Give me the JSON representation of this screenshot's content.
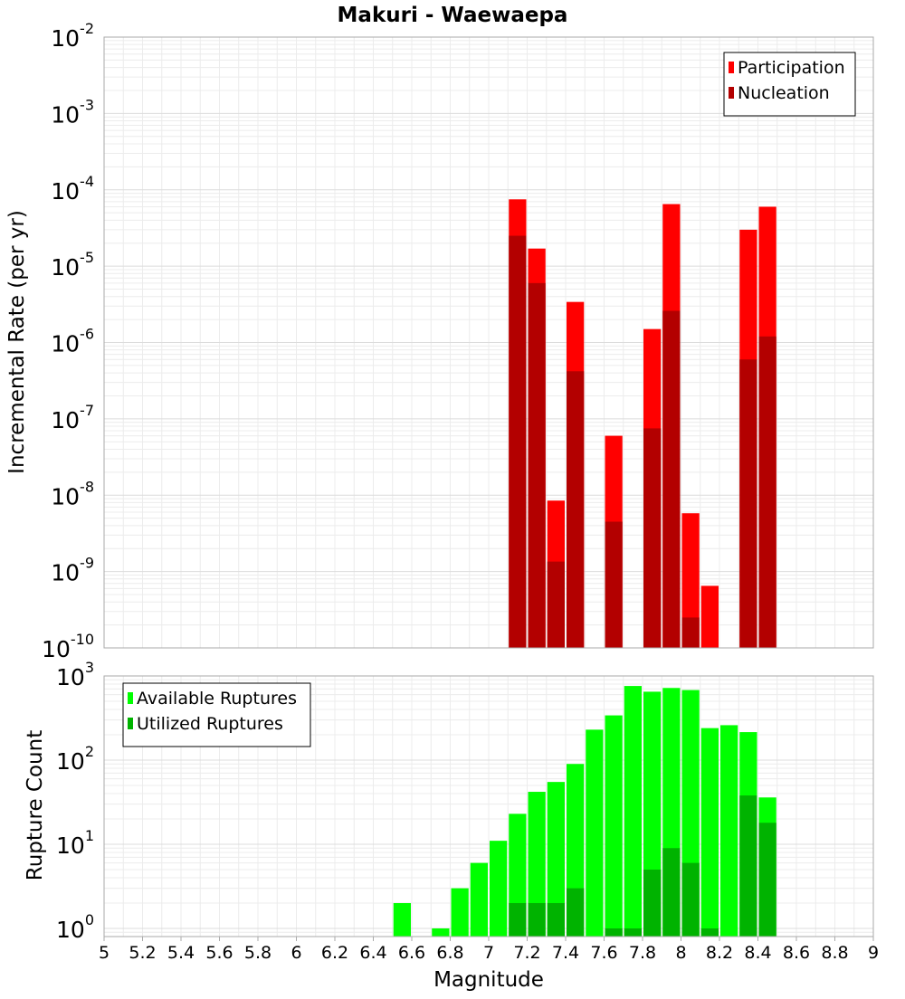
{
  "title": "Makuri - Waewaepa",
  "xlabel": "Magnitude",
  "x_tick_labels": [
    "5",
    "5.2",
    "5.4",
    "5.6",
    "5.8",
    "6",
    "6.2",
    "6.4",
    "6.6",
    "6.8",
    "7",
    "7.2",
    "7.4",
    "7.6",
    "7.8",
    "8",
    "8.2",
    "8.4",
    "8.6",
    "8.8",
    "9"
  ],
  "top_panel": {
    "ylabel": "Incremental Rate (per yr)",
    "y_tick_base": [
      "10",
      "10",
      "10",
      "10",
      "10",
      "10",
      "10",
      "10",
      "10"
    ],
    "y_tick_exp": [
      "-10",
      "-9",
      "-8",
      "-7",
      "-6",
      "-5",
      "-4",
      "-3",
      "-2"
    ],
    "legend": [
      "Participation",
      "Nucleation"
    ]
  },
  "bottom_panel": {
    "ylabel": "Rupture Count",
    "y_tick_base": [
      "10",
      "10",
      "10",
      "10"
    ],
    "y_tick_exp": [
      "0",
      "1",
      "2",
      "3"
    ],
    "legend": [
      "Available Ruptures",
      "Utilized Ruptures"
    ]
  },
  "chart_data": [
    {
      "type": "bar",
      "panel": "top",
      "scale": "log",
      "xlim": [
        5,
        9
      ],
      "ylim": [
        1e-10,
        0.01
      ],
      "grid": true,
      "legend_position": "top-right",
      "x": [
        7.15,
        7.25,
        7.35,
        7.45,
        7.65,
        7.85,
        7.95,
        8.05,
        8.15,
        8.35,
        8.45
      ],
      "series": [
        {
          "name": "Participation",
          "color": "#ff0000",
          "values": [
            7.5e-05,
            1.7e-05,
            8.5e-09,
            3.4e-06,
            6e-08,
            1.5e-06,
            6.5e-05,
            5.8e-09,
            6.5e-10,
            3e-05,
            6e-05
          ]
        },
        {
          "name": "Nucleation",
          "color": "#b30000",
          "values": [
            2.5e-05,
            6e-06,
            1.35e-09,
            4.2e-07,
            4.5e-09,
            7.5e-08,
            2.6e-06,
            2.5e-10,
            null,
            6e-07,
            1.2e-06
          ]
        }
      ]
    },
    {
      "type": "bar",
      "panel": "bottom",
      "scale": "log",
      "xlim": [
        5,
        9
      ],
      "ylim": [
        0.8,
        1000
      ],
      "grid": true,
      "legend_position": "top-left",
      "x": [
        6.55,
        6.75,
        6.85,
        6.95,
        7.05,
        7.15,
        7.25,
        7.35,
        7.45,
        7.55,
        7.65,
        7.75,
        7.85,
        7.95,
        8.05,
        8.15,
        8.25,
        8.35,
        8.45
      ],
      "series": [
        {
          "name": "Available Ruptures",
          "color": "#00ff00",
          "values": [
            2,
            1,
            3,
            6,
            11,
            23,
            42,
            55,
            90,
            230,
            340,
            760,
            650,
            720,
            680,
            240,
            260,
            215,
            36
          ]
        },
        {
          "name": "Utilized Ruptures",
          "color": "#00b300",
          "values": [
            null,
            null,
            null,
            null,
            null,
            2,
            2,
            2,
            3,
            null,
            1,
            1,
            5,
            9,
            6,
            1,
            null,
            38,
            18
          ]
        }
      ]
    }
  ]
}
